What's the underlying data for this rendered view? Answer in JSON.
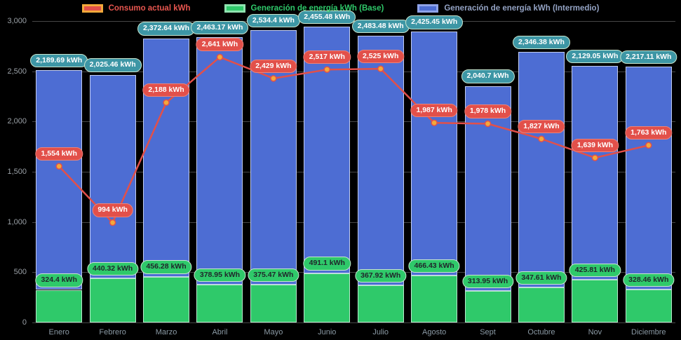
{
  "legend": {
    "items": [
      {
        "label": "Consumo actual kWh",
        "swatch_fill": "#e2504a",
        "swatch_border": "#f2a93b",
        "label_color": "#e8564f"
      },
      {
        "label": "Generación de energía kWh (Base)",
        "swatch_fill": "#2fc96a",
        "swatch_border": "#8fe3b0",
        "label_color": "#2fc96a"
      },
      {
        "label": "Generación de energía kWh (Intermedio)",
        "swatch_fill": "#4d6dd3",
        "swatch_border": "#8fa3e8",
        "label_color": "#94a3c4"
      }
    ]
  },
  "chart_data": {
    "type": "bar",
    "subtype": "stacked-bars-with-line-overlay",
    "background": "#000000",
    "grid": true,
    "legend_position": "top",
    "categories": [
      "Enero",
      "Febrero",
      "Marzo",
      "Abril",
      "Mayo",
      "Junio",
      "Julio",
      "Agosto",
      "Sept",
      "Octubre",
      "Nov",
      "Diciembre"
    ],
    "series": [
      {
        "name": "Generación de energía kWh (Base)",
        "render": "bar",
        "stack": "generacion",
        "color": "#2fc96a",
        "values": [
          324.4,
          440.32,
          456.28,
          378.95,
          375.47,
          491.1,
          367.92,
          466.43,
          313.95,
          347.61,
          425.81,
          328.46
        ],
        "labels": [
          "324.4 kWh",
          "440.32 kWh",
          "456.28 kWh",
          "378.95 kWh",
          "375.47 kWh",
          "491.1 kWh",
          "367.92 kWh",
          "466.43 kWh",
          "313.95 kWh",
          "347.61 kWh",
          "425.81 kWh",
          "328.46 kWh"
        ]
      },
      {
        "name": "Generación de energía kWh (Intermedio)",
        "render": "bar",
        "stack": "generacion",
        "color": "#4d6dd3",
        "values": [
          2189.69,
          2025.46,
          2372.64,
          2463.17,
          2534.4,
          2455.48,
          2483.48,
          2425.45,
          2040.7,
          2346.38,
          2129.05,
          2217.11
        ],
        "labels": [
          "2,189.69 kWh",
          "2,025.46 kWh",
          "2,372.64 kWh",
          "2,463.17 kWh",
          "2,534.4 kWh",
          "2,455.48 kWh",
          "2,483.48 kWh",
          "2,425.45 kWh",
          "2,040.7 kWh",
          "2,346.38 kWh",
          "2,129.05 kWh",
          "2,217.11 kWh"
        ]
      },
      {
        "name": "Consumo actual kWh",
        "render": "line",
        "color": "#e2504a",
        "point_color": "#f2a93b",
        "values": [
          1554,
          994,
          2188,
          2641,
          2429,
          2517,
          2525,
          1987,
          1978,
          1827,
          1639,
          1763
        ],
        "labels": [
          "1,554 kWh",
          "994 kWh",
          "2,188 kWh",
          "2,641 kWh",
          "2,429 kWh",
          "2,517 kWh",
          "2,525 kWh",
          "1,987 kWh",
          "1,978 kWh",
          "1,827 kWh",
          "1,639 kWh",
          "1,763 kWh"
        ]
      }
    ],
    "ylim": [
      0,
      3000
    ],
    "yticks": [
      {
        "label": "3,000",
        "value": 3000
      },
      {
        "label": "2,500",
        "value": 2500
      },
      {
        "label": "2,000",
        "value": 2000
      },
      {
        "label": "1,500",
        "value": 1500
      },
      {
        "label": "1,000",
        "value": 1000
      },
      {
        "label": "500",
        "value": 500
      },
      {
        "label": "0",
        "value": 0
      }
    ],
    "label_styles": {
      "total_pill_bg": "#3d96a5",
      "total_pill_text": "#ffffff",
      "total_pill_border": "#c8e6cf",
      "base_pill_bg": "#2fc96a",
      "base_pill_text": "#20262b",
      "base_pill_border": "#c8e6cf",
      "consumo_pill_bg": "#e2504a",
      "consumo_pill_text": "#ffffff",
      "consumo_pill_border": "#ea837a"
    }
  }
}
